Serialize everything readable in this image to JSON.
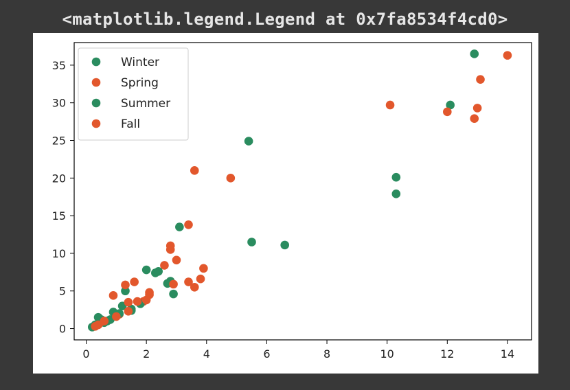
{
  "output_text": "<matplotlib.legend.Legend at 0x7fa8534f4cd0>",
  "colors": {
    "background": "#383838",
    "figure": "#ffffff",
    "green": "#2a8c5f",
    "orange": "#e2572c"
  },
  "chart_data": {
    "type": "scatter",
    "title": "",
    "xlabel": "",
    "ylabel": "",
    "xlim": [
      -0.4,
      14.8
    ],
    "ylim": [
      -1.5,
      38.0
    ],
    "xticks": [
      0,
      2,
      4,
      6,
      8,
      10,
      12,
      14
    ],
    "yticks": [
      0,
      5,
      10,
      15,
      20,
      25,
      30,
      35
    ],
    "grid": false,
    "legend_position": "top-left",
    "series": [
      {
        "name": "Winter",
        "color": "#2a8c5f",
        "points": [
          [
            0.2,
            0.2
          ],
          [
            0.3,
            0.5
          ],
          [
            0.4,
            1.5
          ],
          [
            0.6,
            0.8
          ],
          [
            0.8,
            1.2
          ],
          [
            0.9,
            2.2
          ],
          [
            1.0,
            1.8
          ],
          [
            1.2,
            3.0
          ],
          [
            1.3,
            5.0
          ],
          [
            1.5,
            2.6
          ]
        ]
      },
      {
        "name": "Spring",
        "color": "#e2572c",
        "points": [
          [
            0.3,
            0.3
          ],
          [
            0.5,
            0.9
          ],
          [
            0.9,
            4.4
          ],
          [
            1.1,
            1.9
          ],
          [
            1.3,
            5.8
          ],
          [
            1.4,
            3.5
          ],
          [
            1.6,
            6.2
          ],
          [
            1.9,
            3.6
          ],
          [
            2.1,
            4.8
          ],
          [
            2.6,
            8.4
          ],
          [
            2.8,
            10.5
          ],
          [
            2.8,
            11.0
          ],
          [
            3.0,
            9.1
          ],
          [
            3.4,
            13.8
          ],
          [
            3.6,
            21.0
          ],
          [
            4.8,
            20.0
          ],
          [
            10.1,
            29.7
          ]
        ]
      },
      {
        "name": "Summer",
        "color": "#2a8c5f",
        "points": [
          [
            0.5,
            1.2
          ],
          [
            0.7,
            1.0
          ],
          [
            1.1,
            2.0
          ],
          [
            1.5,
            2.4
          ],
          [
            1.8,
            3.3
          ],
          [
            2.0,
            7.8
          ],
          [
            2.3,
            7.4
          ],
          [
            2.4,
            7.6
          ],
          [
            2.7,
            6.0
          ],
          [
            2.8,
            6.3
          ],
          [
            2.9,
            4.6
          ],
          [
            3.1,
            13.5
          ],
          [
            5.4,
            24.9
          ],
          [
            5.5,
            11.5
          ],
          [
            6.6,
            11.1
          ],
          [
            10.3,
            17.9
          ],
          [
            10.3,
            20.1
          ],
          [
            12.1,
            29.7
          ],
          [
            12.9,
            36.5
          ]
        ]
      },
      {
        "name": "Fall",
        "color": "#e2572c",
        "points": [
          [
            0.4,
            0.5
          ],
          [
            0.6,
            1.0
          ],
          [
            1.0,
            1.6
          ],
          [
            1.4,
            2.3
          ],
          [
            1.7,
            3.6
          ],
          [
            2.0,
            3.8
          ],
          [
            2.1,
            4.5
          ],
          [
            2.9,
            5.9
          ],
          [
            3.4,
            6.2
          ],
          [
            3.6,
            5.5
          ],
          [
            3.8,
            6.6
          ],
          [
            3.9,
            8.0
          ],
          [
            12.0,
            28.8
          ],
          [
            12.9,
            27.9
          ],
          [
            13.0,
            29.3
          ],
          [
            13.1,
            33.1
          ],
          [
            14.0,
            36.3
          ]
        ]
      }
    ]
  }
}
